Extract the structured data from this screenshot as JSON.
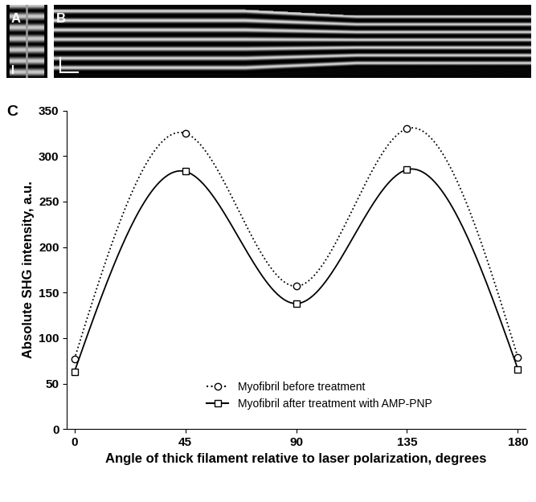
{
  "panel_labels": [
    "A",
    "B",
    "C"
  ],
  "chart_data": {
    "type": "line",
    "x_label": "Angle of thick filament relative to laser polarization, degrees",
    "y_label": "Absolute SHG intensity, a.u.",
    "x": [
      0,
      45,
      90,
      135,
      180
    ],
    "series": [
      {
        "name": "Myofibril before treatment",
        "color": "#000000",
        "marker": "circle",
        "line_style": "dotted",
        "values": [
          77,
          325,
          157,
          330,
          79
        ]
      },
      {
        "name": "Myofibril after treatment with AMP-PNP",
        "color": "#000000",
        "marker": "square",
        "line_style": "solid",
        "values": [
          63,
          283,
          138,
          285,
          66
        ]
      }
    ],
    "xlim": [
      -3,
      183
    ],
    "xticks": [
      0,
      45,
      90,
      135,
      180
    ],
    "ylim": [
      0,
      350
    ],
    "yticks": [
      0,
      50,
      100,
      150,
      200,
      250,
      300,
      350
    ],
    "grid": false,
    "legend": "lower center"
  }
}
